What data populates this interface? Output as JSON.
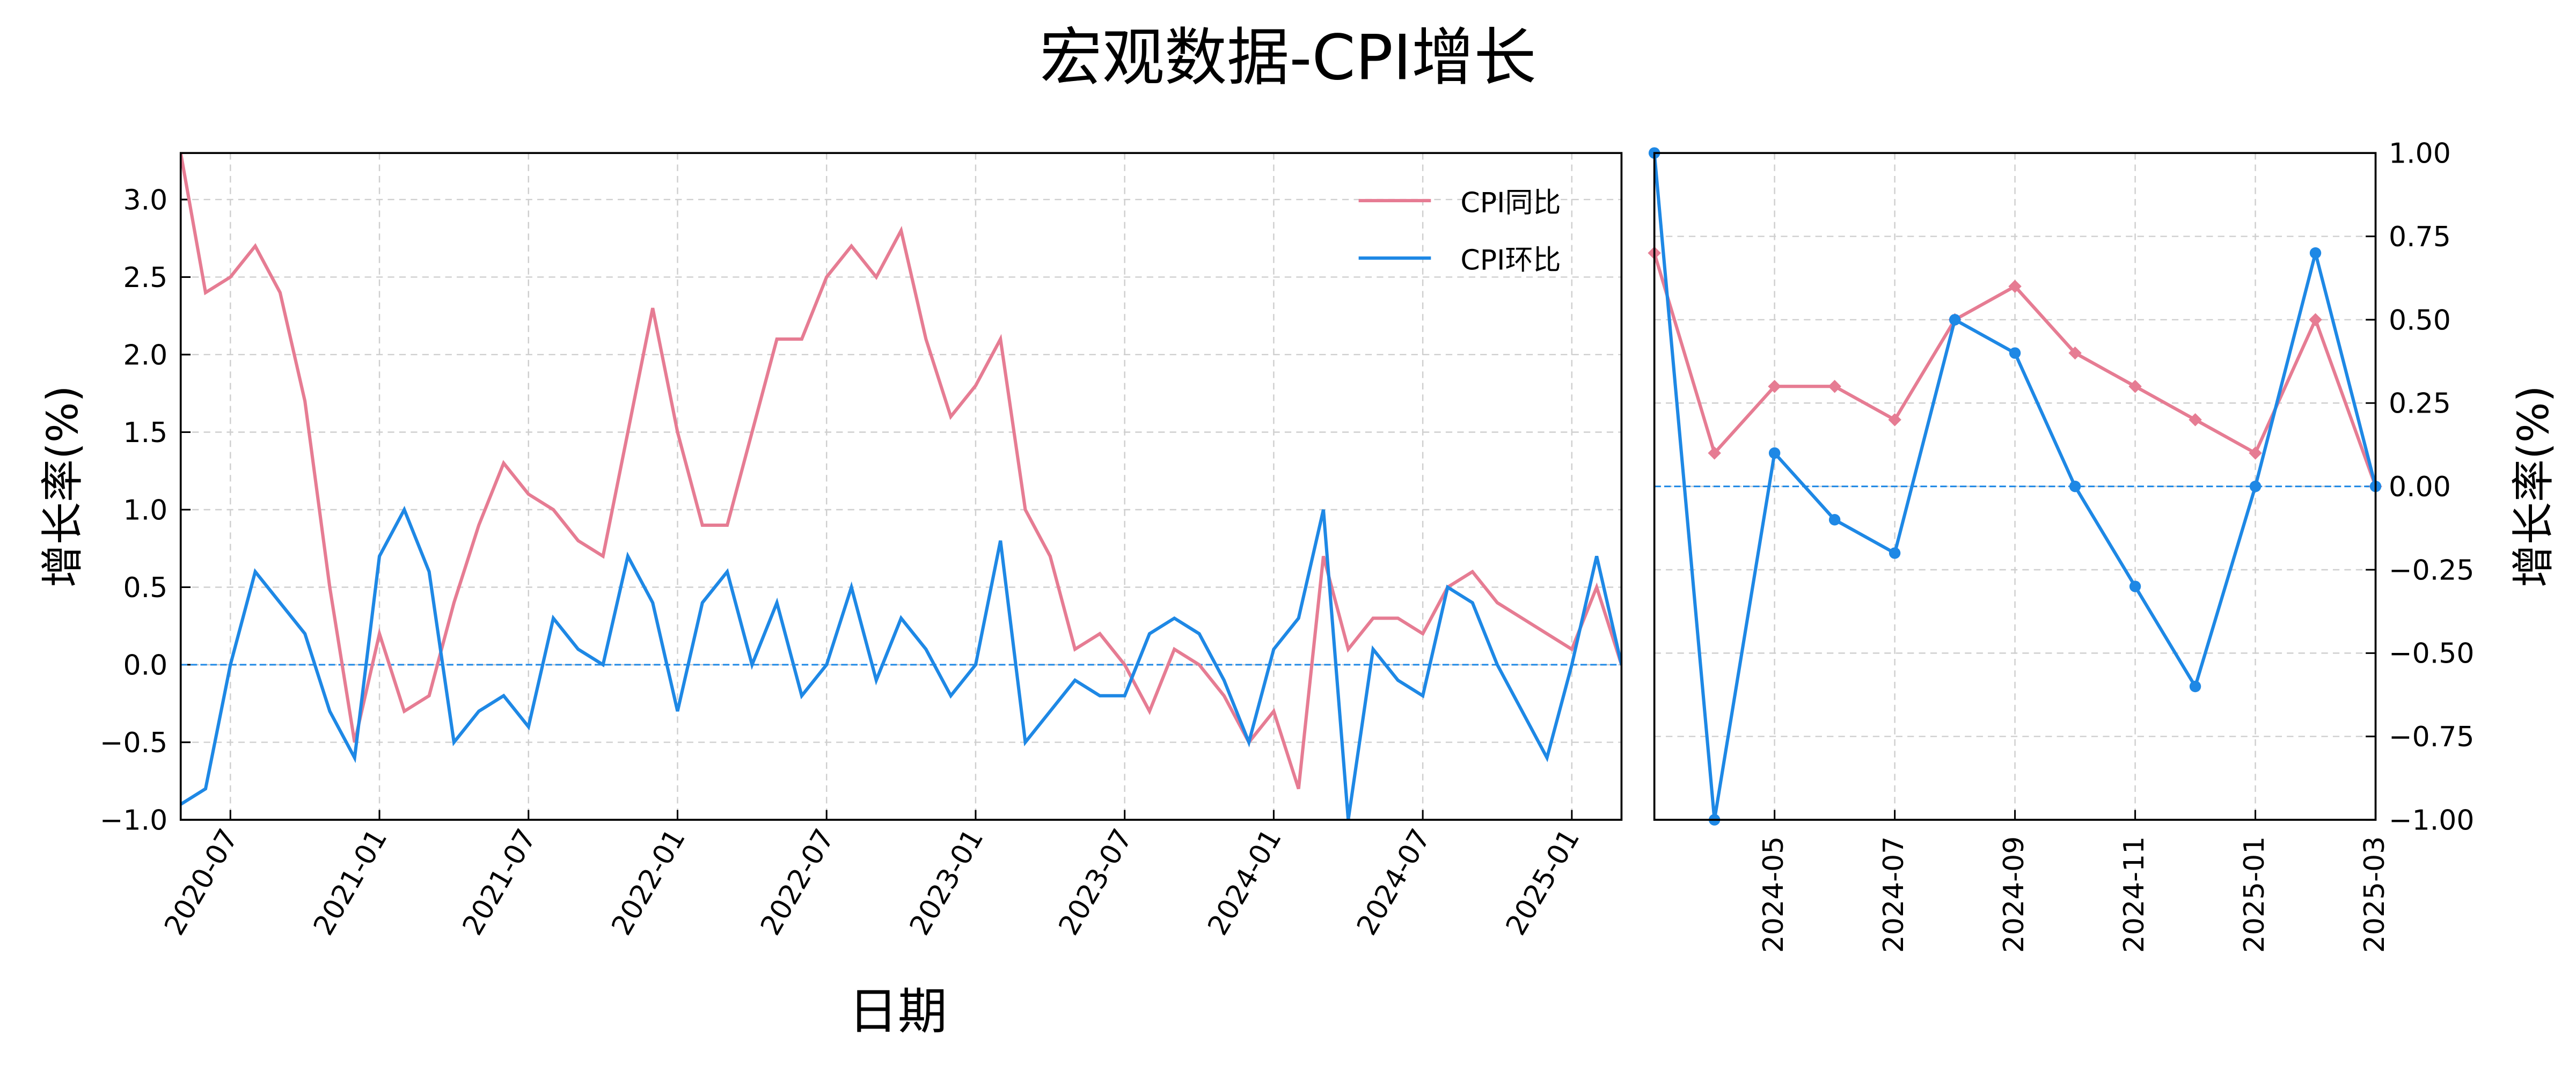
{
  "title": "宏观数据-CPI增长",
  "chart_data": [
    {
      "type": "line",
      "xlabel": "日期",
      "ylabel": "增长率(%)",
      "legend": "upper right",
      "grid": true,
      "reference_line": 0,
      "x": [
        "2020-05",
        "2020-06",
        "2020-07",
        "2020-08",
        "2020-09",
        "2020-10",
        "2020-11",
        "2020-12",
        "2021-01",
        "2021-02",
        "2021-03",
        "2021-04",
        "2021-05",
        "2021-06",
        "2021-07",
        "2021-08",
        "2021-09",
        "2021-10",
        "2021-11",
        "2021-12",
        "2022-01",
        "2022-02",
        "2022-03",
        "2022-04",
        "2022-05",
        "2022-06",
        "2022-07",
        "2022-08",
        "2022-09",
        "2022-10",
        "2022-11",
        "2022-12",
        "2023-01",
        "2023-02",
        "2023-03",
        "2023-04",
        "2023-05",
        "2023-06",
        "2023-07",
        "2023-08",
        "2023-09",
        "2023-10",
        "2023-11",
        "2023-12",
        "2024-01",
        "2024-02",
        "2024-03",
        "2024-04",
        "2024-05",
        "2024-06",
        "2024-07",
        "2024-08",
        "2024-09",
        "2024-10",
        "2024-11",
        "2024-12",
        "2025-01",
        "2025-02",
        "2025-03"
      ],
      "series": [
        {
          "name": "CPI同比",
          "color": "#e67c93",
          "values": [
            3.3,
            2.4,
            2.5,
            2.7,
            2.4,
            1.7,
            0.5,
            -0.5,
            0.2,
            -0.3,
            -0.2,
            0.4,
            0.9,
            1.3,
            1.1,
            1.0,
            0.8,
            0.7,
            1.5,
            2.3,
            1.5,
            0.9,
            0.9,
            1.5,
            2.1,
            2.1,
            2.5,
            2.7,
            2.5,
            2.8,
            2.1,
            1.6,
            1.8,
            2.1,
            1.0,
            0.7,
            0.1,
            0.2,
            0.0,
            -0.3,
            0.1,
            0.0,
            -0.2,
            -0.5,
            -0.3,
            -0.8,
            0.7,
            0.1,
            0.3,
            0.3,
            0.2,
            0.5,
            0.6,
            0.4,
            0.3,
            0.2,
            0.1,
            0.5,
            0.0
          ]
        },
        {
          "name": "CPI环比",
          "color": "#1e88e5",
          "values": [
            -0.9,
            -0.8,
            0.0,
            0.6,
            0.4,
            0.2,
            -0.3,
            -0.6,
            0.7,
            1.0,
            0.6,
            -0.5,
            -0.3,
            -0.2,
            -0.4,
            0.3,
            0.1,
            0.0,
            0.7,
            0.4,
            -0.3,
            0.4,
            0.6,
            0.0,
            0.4,
            -0.2,
            0.0,
            0.5,
            -0.1,
            0.3,
            0.1,
            -0.2,
            0.0,
            0.8,
            -0.5,
            -0.3,
            -0.1,
            -0.2,
            -0.2,
            0.2,
            0.3,
            0.2,
            -0.1,
            -0.5,
            0.1,
            0.3,
            1.0,
            -1.0,
            0.1,
            -0.1,
            -0.2,
            0.5,
            0.4,
            0.0,
            -0.3,
            -0.6,
            0.0,
            0.7,
            0.0
          ]
        }
      ],
      "xticks": [
        "2020-07",
        "2021-01",
        "2021-07",
        "2022-01",
        "2022-07",
        "2023-01",
        "2023-07",
        "2024-01",
        "2024-07",
        "2025-01"
      ],
      "ylim": [
        -1.0,
        3.3
      ],
      "yticks": [
        {
          "value": -1.0,
          "label": "−1.0"
        },
        {
          "value": -0.5,
          "label": "−0.5"
        },
        {
          "value": 0.0,
          "label": "0.0"
        },
        {
          "value": 0.5,
          "label": "0.5"
        },
        {
          "value": 1.0,
          "label": "1.0"
        },
        {
          "value": 1.5,
          "label": "1.5"
        },
        {
          "value": 2.0,
          "label": "2.0"
        },
        {
          "value": 2.5,
          "label": "2.5"
        },
        {
          "value": 3.0,
          "label": "3.0"
        }
      ]
    },
    {
      "type": "line",
      "ylabel": "增长率(%)",
      "y_axis_side": "right",
      "grid": true,
      "reference_line": 0,
      "markers": true,
      "x": [
        "2024-03",
        "2024-04",
        "2024-05",
        "2024-06",
        "2024-07",
        "2024-08",
        "2024-09",
        "2024-10",
        "2024-11",
        "2024-12",
        "2025-01",
        "2025-02",
        "2025-03"
      ],
      "series": [
        {
          "color": "#e67c93",
          "marker": "diamond",
          "values": [
            0.7,
            0.1,
            0.3,
            0.3,
            0.2,
            0.5,
            0.6,
            0.4,
            0.3,
            0.2,
            0.1,
            0.5,
            0.0
          ]
        },
        {
          "color": "#1e88e5",
          "marker": "circle",
          "values": [
            1.0,
            -1.0,
            0.1,
            -0.1,
            -0.2,
            0.5,
            0.4,
            0.0,
            -0.3,
            -0.6,
            0.0,
            0.7,
            0.0
          ]
        }
      ],
      "xticks": [
        "2024-05",
        "2024-07",
        "2024-09",
        "2024-11",
        "2025-01",
        "2025-03"
      ],
      "ylim": [
        -1.0,
        1.0
      ],
      "yticks": [
        {
          "value": -1.0,
          "label": "−1.00"
        },
        {
          "value": -0.75,
          "label": "−0.75"
        },
        {
          "value": -0.5,
          "label": "−0.50"
        },
        {
          "value": -0.25,
          "label": "−0.25"
        },
        {
          "value": 0.0,
          "label": "0.00"
        },
        {
          "value": 0.25,
          "label": "0.25"
        },
        {
          "value": 0.5,
          "label": "0.50"
        },
        {
          "value": 0.75,
          "label": "0.75"
        },
        {
          "value": 1.0,
          "label": "1.00"
        }
      ]
    }
  ]
}
